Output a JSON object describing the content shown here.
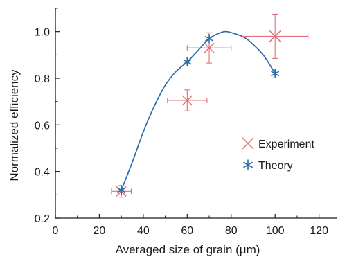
{
  "chart_data": {
    "type": "scatter",
    "xlabel": "Averaged size of grain (μm)",
    "ylabel": "Normalized efficiency",
    "xlim": [
      0,
      128
    ],
    "ylim": [
      0.2,
      1.1
    ],
    "xticks": [
      0,
      20,
      40,
      60,
      80,
      100,
      120
    ],
    "xtick_labels": [
      "0",
      "20",
      "40",
      "60",
      "80",
      "100",
      "120"
    ],
    "yticks": [
      0.2,
      0.4,
      0.6,
      0.8,
      1.0
    ],
    "ytick_labels": [
      "0.2",
      "0.4",
      "0.6",
      "0.8",
      "1.0"
    ],
    "grid": false,
    "legend_position": "right",
    "series": [
      {
        "name": "Experiment",
        "marker": "x",
        "color": "#e0707a",
        "points": [
          {
            "x": 30,
            "y": 0.315,
            "xerr": 4.5,
            "yerr": 0.025
          },
          {
            "x": 60,
            "y": 0.705,
            "xerr": 9,
            "yerr": 0.045
          },
          {
            "x": 70,
            "y": 0.93,
            "xerr": 10,
            "yerr": 0.065
          },
          {
            "x": 100,
            "y": 0.98,
            "xerr": 15,
            "yerr": 0.095
          }
        ]
      },
      {
        "name": "Theory",
        "marker": "asterisk",
        "color": "#2b6aa8",
        "points": [
          {
            "x": 30,
            "y": 0.32
          },
          {
            "x": 60,
            "y": 0.87
          },
          {
            "x": 70,
            "y": 0.97
          },
          {
            "x": 100,
            "y": 0.82
          }
        ],
        "curve": [
          [
            30,
            0.32
          ],
          [
            35,
            0.44
          ],
          [
            40,
            0.57
          ],
          [
            45,
            0.68
          ],
          [
            50,
            0.77
          ],
          [
            55,
            0.83
          ],
          [
            60,
            0.87
          ],
          [
            65,
            0.92
          ],
          [
            70,
            0.97
          ],
          [
            75,
            0.995
          ],
          [
            78,
            1.0
          ],
          [
            82,
            0.99
          ],
          [
            86,
            0.975
          ],
          [
            90,
            0.945
          ],
          [
            95,
            0.895
          ],
          [
            100,
            0.82
          ]
        ]
      }
    ]
  }
}
